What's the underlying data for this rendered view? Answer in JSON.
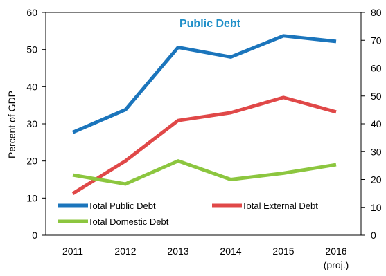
{
  "chart_data": {
    "type": "line",
    "title": "Public Debt",
    "title_color": "#1f8fc8",
    "ylabel": "Percent of GDP",
    "x": [
      "2011",
      "2012",
      "2013",
      "2014",
      "2015",
      "2016"
    ],
    "x_sublabels": {
      "2016": "(proj.)"
    },
    "ylim": [
      0,
      60
    ],
    "yticks": [
      "0",
      "10",
      "20",
      "30",
      "40",
      "50",
      "60"
    ],
    "y2lim": [
      0,
      80
    ],
    "y2ticks": [
      "0",
      "10",
      "20",
      "30",
      "40",
      "50",
      "60",
      "70",
      "80"
    ],
    "grid": false,
    "legend_position": "bottom-inside",
    "series": [
      {
        "name": "Total Public Debt",
        "color": "#1b75bc",
        "values": [
          27.7,
          33.8,
          50.6,
          48.0,
          53.7,
          52.2
        ]
      },
      {
        "name": "Total External Debt",
        "color": "#e04848",
        "values": [
          11.2,
          20.0,
          30.9,
          33.0,
          37.1,
          33.2
        ]
      },
      {
        "name": "Total Domestic Debt",
        "color": "#8cc63f",
        "values": [
          16.2,
          13.8,
          20.0,
          15.0,
          16.7,
          19.0
        ]
      }
    ]
  }
}
